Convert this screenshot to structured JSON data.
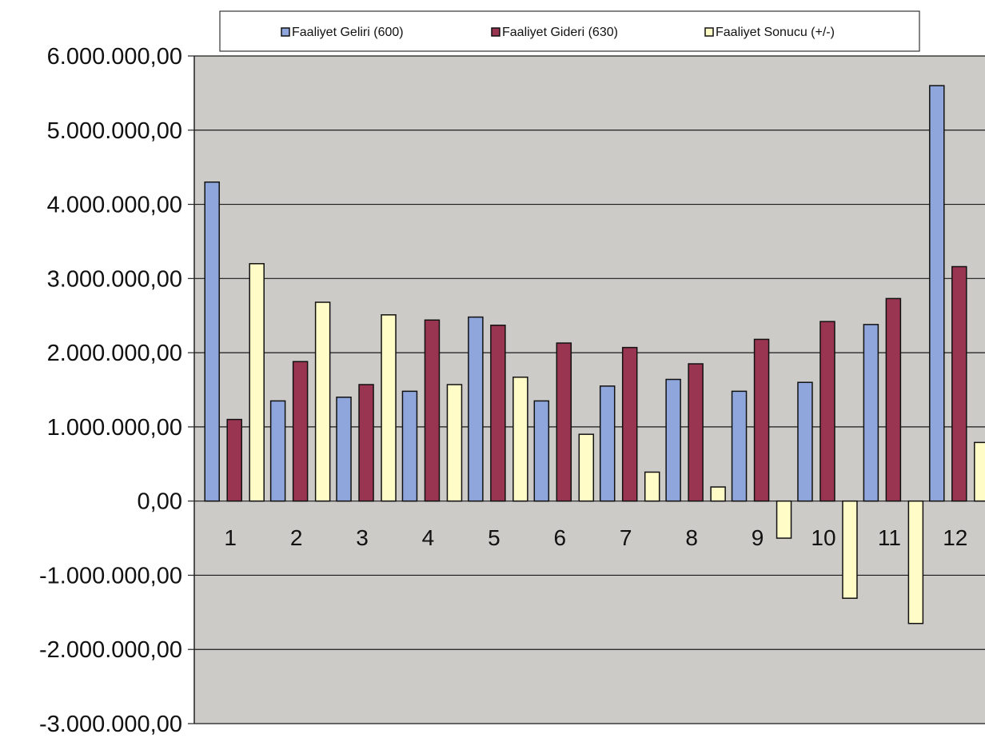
{
  "chart_data": {
    "type": "bar",
    "title": "",
    "xlabel": "",
    "ylabel": "",
    "categories": [
      "1",
      "2",
      "3",
      "4",
      "5",
      "6",
      "7",
      "8",
      "9",
      "10",
      "11",
      "12"
    ],
    "series": [
      {
        "name": "Faaliyet Geliri (600)",
        "color": "#8ea6dc",
        "values": [
          4300000,
          1350000,
          1400000,
          1480000,
          2480000,
          1350000,
          1550000,
          1640000,
          1480000,
          1600000,
          2380000,
          5600000
        ]
      },
      {
        "name": "Faaliyet Gideri (630)",
        "color": "#9a3551",
        "values": [
          1100000,
          1880000,
          1570000,
          2440000,
          2370000,
          2130000,
          2070000,
          1850000,
          2180000,
          2420000,
          2730000,
          3160000
        ]
      },
      {
        "name": "Faaliyet Sonucu (+/-)",
        "color": "#fffcc8",
        "values": [
          3200000,
          2680000,
          2510000,
          1570000,
          1670000,
          900000,
          390000,
          190000,
          -500000,
          -1310000,
          -1650000,
          790000
        ]
      }
    ],
    "ylim": [
      -3000000,
      6000000
    ],
    "y_ticks": [
      6000000,
      5000000,
      4000000,
      3000000,
      2000000,
      1000000,
      0,
      -1000000,
      -2000000,
      -3000000
    ],
    "y_tick_labels": [
      "6.000.000,00",
      "5.000.000,00",
      "4.000.000,00",
      "3.000.000,00",
      "2.000.000,00",
      "1.000.000,00",
      "0,00",
      "-1.000.000,00",
      "-2.000.000,00",
      "-3.000.000,00"
    ],
    "grid": true,
    "legend_position": "top",
    "colors": {
      "plot_background": "#cdcbc8",
      "gridline": "#1a1a1a",
      "bar_outline": "#111111"
    }
  }
}
